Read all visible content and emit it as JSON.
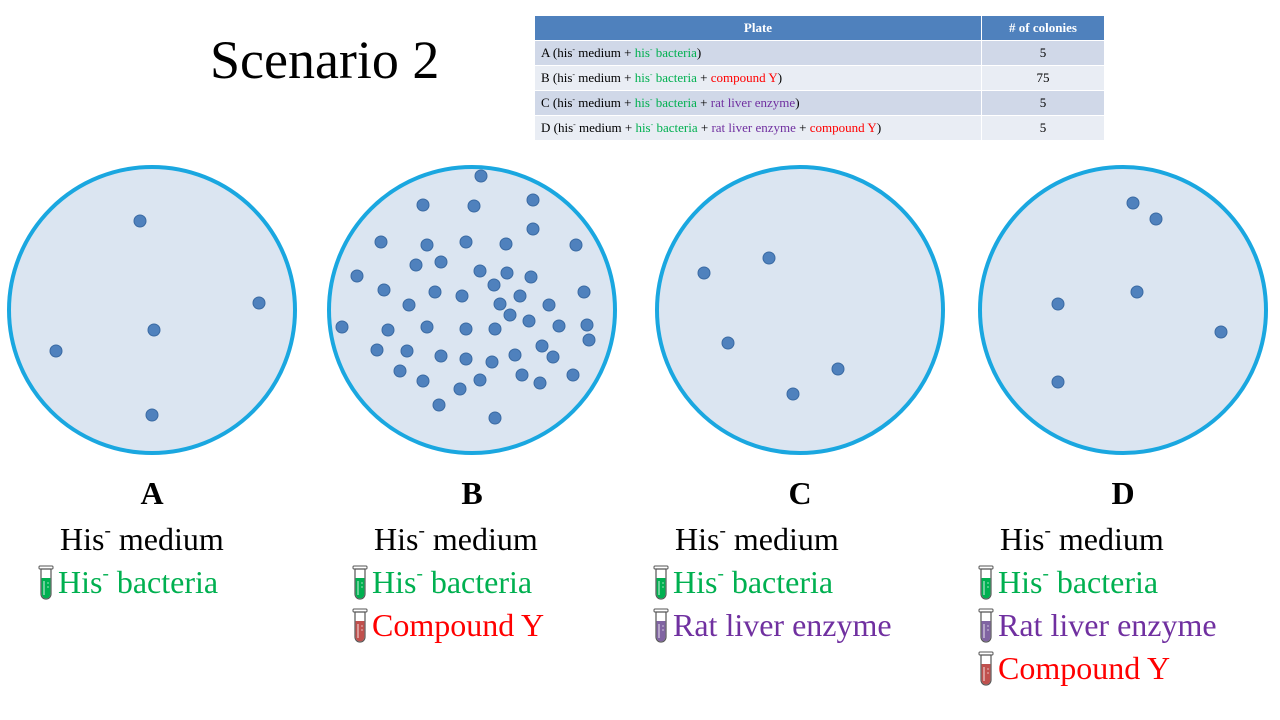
{
  "title": "Scenario 2",
  "table": {
    "headers": [
      "Plate",
      "# of colonies"
    ],
    "rows": [
      {
        "parts": [
          {
            "text": "A (his"
          },
          {
            "sup": "-"
          },
          {
            "text": " medium + "
          },
          {
            "text": "his",
            "color": "green"
          },
          {
            "sup": "-",
            "color": "green"
          },
          {
            "text": " bacteria",
            "color": "green"
          },
          {
            "text": ")"
          }
        ],
        "count": "5"
      },
      {
        "parts": [
          {
            "text": "B (his"
          },
          {
            "sup": "-"
          },
          {
            "text": " medium + "
          },
          {
            "text": "his",
            "color": "green"
          },
          {
            "sup": "-",
            "color": "green"
          },
          {
            "text": " bacteria",
            "color": "green"
          },
          {
            "text": " + "
          },
          {
            "text": "compound Y",
            "color": "red"
          },
          {
            "text": ")"
          }
        ],
        "count": "75"
      },
      {
        "parts": [
          {
            "text": "C (his"
          },
          {
            "sup": "-"
          },
          {
            "text": " medium + "
          },
          {
            "text": "his",
            "color": "green"
          },
          {
            "sup": "-",
            "color": "green"
          },
          {
            "text": " bacteria",
            "color": "green"
          },
          {
            "text": " + "
          },
          {
            "text": "rat liver enzyme",
            "color": "purple"
          },
          {
            "text": ")"
          }
        ],
        "count": "5"
      },
      {
        "parts": [
          {
            "text": "D (his"
          },
          {
            "sup": "-"
          },
          {
            "text": " medium + "
          },
          {
            "text": "his",
            "color": "green"
          },
          {
            "sup": "-",
            "color": "green"
          },
          {
            "text": " bacteria",
            "color": "green"
          },
          {
            "text": " + "
          },
          {
            "text": "rat liver enzyme",
            "color": "purple"
          },
          {
            "text": " + "
          },
          {
            "text": "compound Y",
            "color": "red"
          },
          {
            "text": ")"
          }
        ],
        "count": "5"
      }
    ]
  },
  "plates": [
    {
      "label": "A",
      "items": [
        {
          "tube": false,
          "text": "His",
          "sup": "-",
          "after": " medium",
          "color": "black"
        },
        {
          "tube": true,
          "text": "His",
          "sup": "-",
          "after": " bacteria",
          "color": "green"
        }
      ]
    },
    {
      "label": "B",
      "items": [
        {
          "tube": false,
          "text": "His",
          "sup": "-",
          "after": " medium",
          "color": "black"
        },
        {
          "tube": true,
          "text": "His",
          "sup": "-",
          "after": " bacteria",
          "color": "green"
        },
        {
          "tube": true,
          "text": "Compound Y",
          "color": "red"
        }
      ]
    },
    {
      "label": "C",
      "items": [
        {
          "tube": false,
          "text": "His",
          "sup": "-",
          "after": " medium",
          "color": "black"
        },
        {
          "tube": true,
          "text": "His",
          "sup": "-",
          "after": " bacteria",
          "color": "green"
        },
        {
          "tube": true,
          "text": "Rat liver enzyme",
          "color": "purple"
        }
      ]
    },
    {
      "label": "D",
      "items": [
        {
          "tube": false,
          "text": "His",
          "sup": "-",
          "after": " medium",
          "color": "black"
        },
        {
          "tube": true,
          "text": "His",
          "sup": "-",
          "after": " bacteria",
          "color": "green"
        },
        {
          "tube": true,
          "text": "Rat liver enzyme",
          "color": "purple"
        },
        {
          "tube": true,
          "text": "Compound Y",
          "color": "red"
        }
      ]
    }
  ],
  "colors": {
    "green": "#00b050",
    "red": "#ff0000",
    "purple": "#7030a0",
    "black": "#000000",
    "plate_fill": "#dbe5f1",
    "plate_border": "#1aa7e0",
    "colony": "#4f81bd",
    "header": "#4f81bd",
    "tube_fill": {
      "green": "#00b050",
      "red": "#c0504d",
      "purple": "#8064a2"
    }
  },
  "icons": {
    "tube": "test-tube-icon"
  }
}
